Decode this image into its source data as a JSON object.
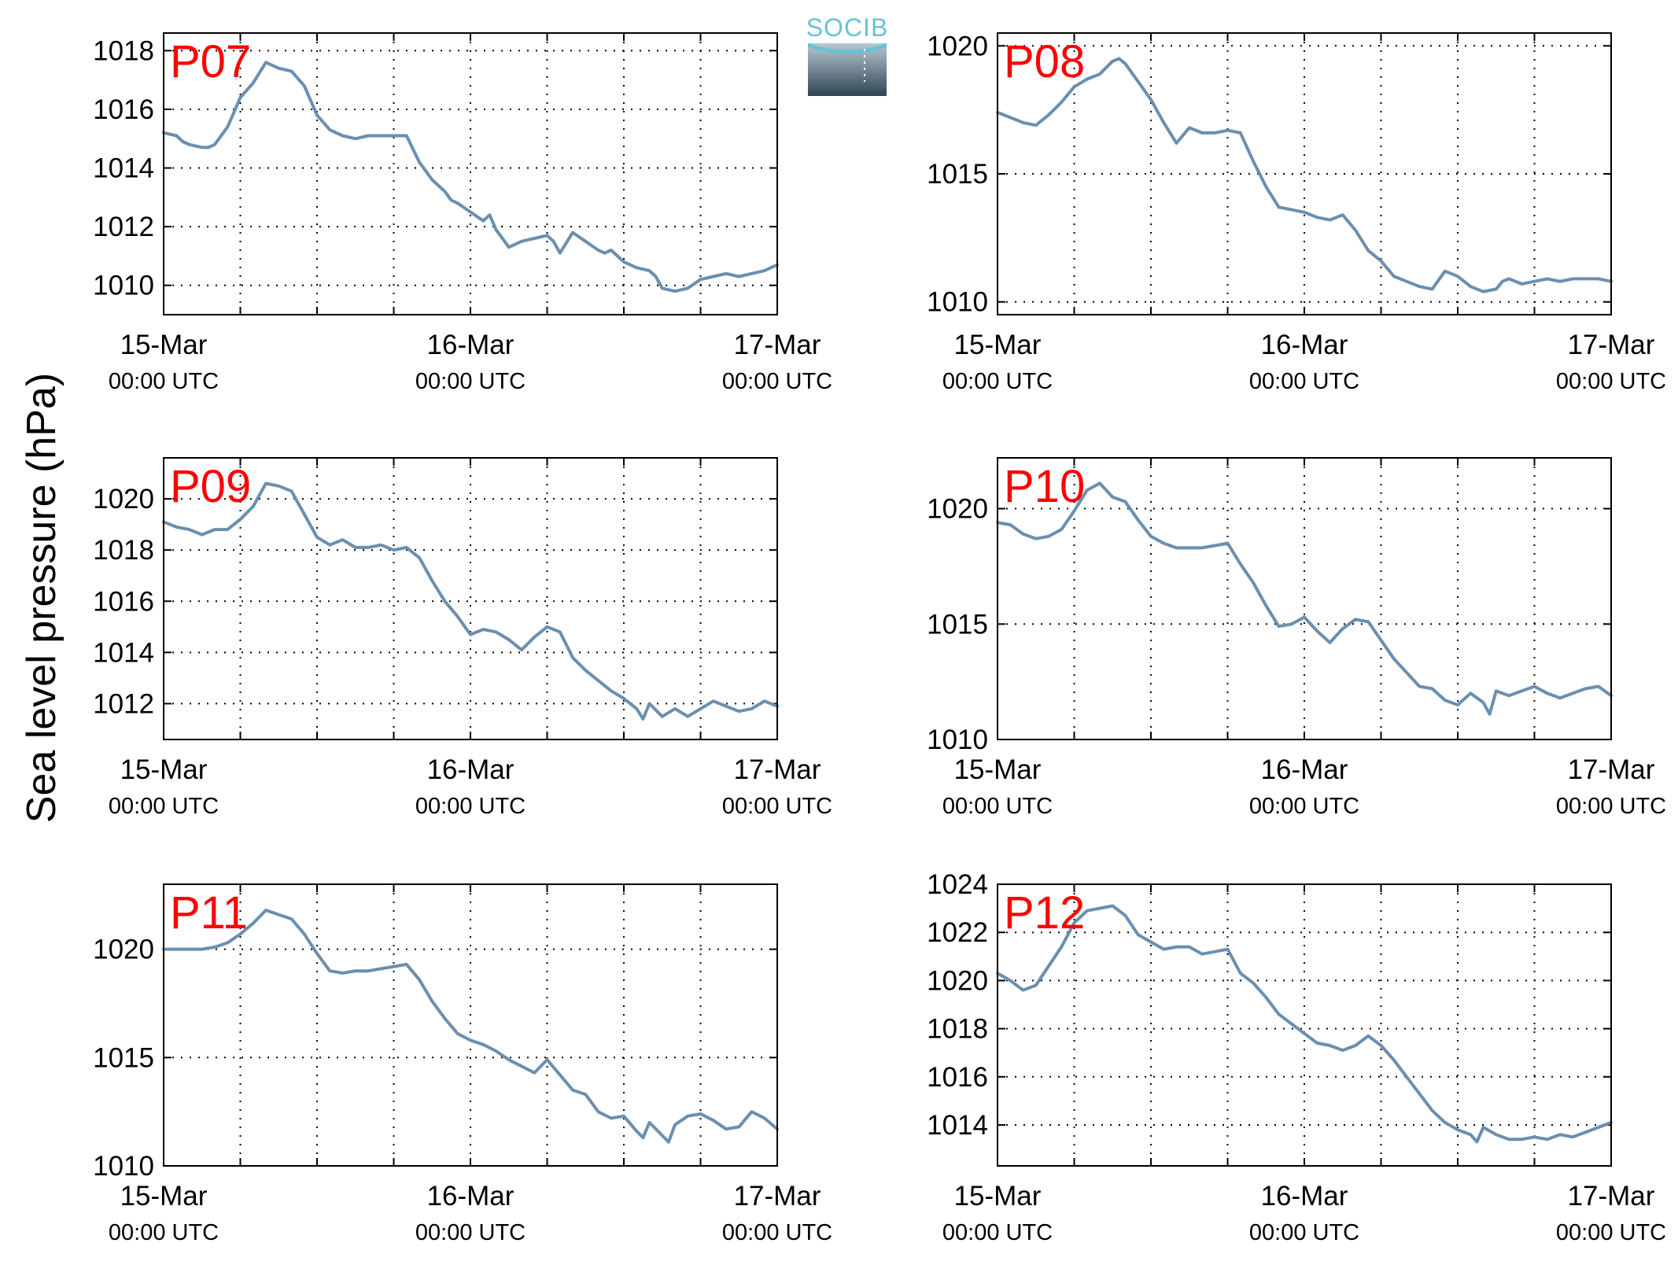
{
  "figure": {
    "ylabel": "Sea level pressure (hPa)",
    "logo_text": "SOCIB",
    "line_color": "#6a8fb0",
    "station_label_color": "#ff0000"
  },
  "chart_data": [
    {
      "type": "line",
      "station": "P07",
      "xlim": [
        0,
        48
      ],
      "ylim": [
        1009,
        1018.6
      ],
      "yticks": [
        1010,
        1012,
        1014,
        1016,
        1018
      ],
      "xticks": [
        {
          "x": 0,
          "date": "15-Mar",
          "time": "00:00 UTC"
        },
        {
          "x": 24,
          "date": "16-Mar",
          "time": "00:00 UTC"
        },
        {
          "x": 48,
          "date": "17-Mar",
          "time": "00:00 UTC"
        }
      ],
      "xgrid": [
        6,
        12,
        18,
        24,
        30,
        36,
        42
      ],
      "x": [
        0,
        1,
        1.5,
        2,
        3,
        3.5,
        4,
        5,
        6,
        7,
        8,
        9,
        10,
        11,
        12,
        13,
        14,
        15,
        16,
        17,
        18,
        19,
        20,
        21,
        22,
        22.5,
        23,
        24,
        25,
        25.5,
        26,
        27,
        28,
        29,
        30,
        30.5,
        31,
        32,
        33,
        34,
        34.5,
        35,
        36,
        37,
        38,
        38.5,
        39,
        40,
        41,
        42,
        43,
        44,
        45,
        46,
        47,
        48
      ],
      "values": [
        1015.2,
        1015.1,
        1014.9,
        1014.8,
        1014.7,
        1014.7,
        1014.8,
        1015.4,
        1016.4,
        1016.9,
        1017.6,
        1017.4,
        1017.3,
        1016.8,
        1015.8,
        1015.3,
        1015.1,
        1015.0,
        1015.1,
        1015.1,
        1015.1,
        1015.1,
        1014.2,
        1013.6,
        1013.2,
        1012.9,
        1012.8,
        1012.5,
        1012.2,
        1012.4,
        1011.9,
        1011.3,
        1011.5,
        1011.6,
        1011.7,
        1011.5,
        1011.1,
        1011.8,
        1011.5,
        1011.2,
        1011.1,
        1011.2,
        1010.8,
        1010.6,
        1010.5,
        1010.3,
        1009.9,
        1009.8,
        1009.9,
        1010.2,
        1010.3,
        1010.4,
        1010.3,
        1010.4,
        1010.5,
        1010.7
      ]
    },
    {
      "type": "line",
      "station": "P08",
      "xlim": [
        0,
        48
      ],
      "ylim": [
        1009.5,
        1020.5
      ],
      "yticks": [
        1010,
        1015,
        1020
      ],
      "xticks": [
        {
          "x": 0,
          "date": "15-Mar",
          "time": "00:00 UTC"
        },
        {
          "x": 24,
          "date": "16-Mar",
          "time": "00:00 UTC"
        },
        {
          "x": 48,
          "date": "17-Mar",
          "time": "00:00 UTC"
        }
      ],
      "xgrid": [
        6,
        12,
        18,
        24,
        30,
        36,
        42
      ],
      "x": [
        0,
        1,
        2,
        3,
        4,
        5,
        6,
        7,
        8,
        9,
        9.5,
        10,
        11,
        12,
        13,
        14,
        15,
        16,
        17,
        18,
        19,
        20,
        21,
        22,
        23,
        24,
        25,
        26,
        27,
        28,
        29,
        30,
        31,
        32,
        33,
        34,
        35,
        36,
        37,
        38,
        39,
        39.5,
        40,
        41,
        42,
        43,
        44,
        45,
        46,
        47,
        48
      ],
      "values": [
        1017.4,
        1017.2,
        1017.0,
        1016.9,
        1017.3,
        1017.8,
        1018.4,
        1018.7,
        1018.9,
        1019.4,
        1019.5,
        1019.3,
        1018.6,
        1017.9,
        1017.0,
        1016.2,
        1016.8,
        1016.6,
        1016.6,
        1016.7,
        1016.6,
        1015.5,
        1014.5,
        1013.7,
        1013.6,
        1013.5,
        1013.3,
        1013.2,
        1013.4,
        1012.8,
        1012.0,
        1011.6,
        1011.0,
        1010.8,
        1010.6,
        1010.5,
        1011.2,
        1011.0,
        1010.6,
        1010.4,
        1010.5,
        1010.8,
        1010.9,
        1010.7,
        1010.8,
        1010.9,
        1010.8,
        1010.9,
        1010.9,
        1010.9,
        1010.8
      ]
    },
    {
      "type": "line",
      "station": "P09",
      "xlim": [
        0,
        48
      ],
      "ylim": [
        1010.6,
        1021.6
      ],
      "yticks": [
        1012,
        1014,
        1016,
        1018,
        1020
      ],
      "xticks": [
        {
          "x": 0,
          "date": "15-Mar",
          "time": "00:00 UTC"
        },
        {
          "x": 24,
          "date": "16-Mar",
          "time": "00:00 UTC"
        },
        {
          "x": 48,
          "date": "17-Mar",
          "time": "00:00 UTC"
        }
      ],
      "xgrid": [
        6,
        12,
        18,
        24,
        30,
        36,
        42
      ],
      "x": [
        0,
        1,
        2,
        3,
        4,
        5,
        6,
        7,
        8,
        9,
        10,
        11,
        12,
        13,
        14,
        15,
        16,
        17,
        18,
        19,
        20,
        21,
        22,
        23,
        24,
        25,
        26,
        27,
        28,
        29,
        30,
        31,
        32,
        33,
        34,
        35,
        36,
        37,
        37.5,
        38,
        39,
        40,
        41,
        42,
        43,
        44,
        45,
        46,
        47,
        48
      ],
      "values": [
        1019.1,
        1018.9,
        1018.8,
        1018.6,
        1018.8,
        1018.8,
        1019.2,
        1019.7,
        1020.6,
        1020.5,
        1020.3,
        1019.4,
        1018.5,
        1018.2,
        1018.4,
        1018.1,
        1018.1,
        1018.2,
        1018.0,
        1018.1,
        1017.7,
        1016.8,
        1016.0,
        1015.4,
        1014.7,
        1014.9,
        1014.8,
        1014.5,
        1014.1,
        1014.6,
        1015.0,
        1014.8,
        1013.8,
        1013.3,
        1012.9,
        1012.5,
        1012.2,
        1011.8,
        1011.4,
        1012.0,
        1011.5,
        1011.8,
        1011.5,
        1011.8,
        1012.1,
        1011.9,
        1011.7,
        1011.8,
        1012.1,
        1011.9
      ]
    },
    {
      "type": "line",
      "station": "P10",
      "xlim": [
        0,
        48
      ],
      "ylim": [
        1010,
        1022.2
      ],
      "yticks": [
        1010,
        1015,
        1020
      ],
      "xticks": [
        {
          "x": 0,
          "date": "15-Mar",
          "time": "00:00 UTC"
        },
        {
          "x": 24,
          "date": "16-Mar",
          "time": "00:00 UTC"
        },
        {
          "x": 48,
          "date": "17-Mar",
          "time": "00:00 UTC"
        }
      ],
      "xgrid": [
        6,
        12,
        18,
        24,
        30,
        36,
        42
      ],
      "x": [
        0,
        1,
        2,
        3,
        4,
        5,
        6,
        7,
        8,
        9,
        10,
        11,
        12,
        13,
        14,
        15,
        16,
        17,
        18,
        19,
        20,
        21,
        22,
        23,
        24,
        25,
        26,
        27,
        28,
        29,
        30,
        31,
        32,
        33,
        34,
        35,
        36,
        37,
        38,
        38.5,
        39,
        40,
        41,
        42,
        43,
        44,
        45,
        46,
        47,
        48
      ],
      "values": [
        1019.4,
        1019.3,
        1018.9,
        1018.7,
        1018.8,
        1019.1,
        1019.9,
        1020.8,
        1021.1,
        1020.5,
        1020.3,
        1019.5,
        1018.8,
        1018.5,
        1018.3,
        1018.3,
        1018.3,
        1018.4,
        1018.5,
        1017.6,
        1016.8,
        1015.8,
        1014.9,
        1015.0,
        1015.3,
        1014.7,
        1014.2,
        1014.8,
        1015.2,
        1015.1,
        1014.3,
        1013.5,
        1012.9,
        1012.3,
        1012.2,
        1011.7,
        1011.5,
        1012.0,
        1011.6,
        1011.1,
        1012.1,
        1011.9,
        1012.1,
        1012.3,
        1012.0,
        1011.8,
        1012.0,
        1012.2,
        1012.3,
        1011.9
      ]
    },
    {
      "type": "line",
      "station": "P11",
      "xlim": [
        0,
        48
      ],
      "ylim": [
        1010,
        1023
      ],
      "yticks": [
        1010,
        1015,
        1020
      ],
      "xticks": [
        {
          "x": 0,
          "date": "15-Mar",
          "time": "00:00 UTC"
        },
        {
          "x": 24,
          "date": "16-Mar",
          "time": "00:00 UTC"
        },
        {
          "x": 48,
          "date": "17-Mar",
          "time": "00:00 UTC"
        }
      ],
      "xgrid": [
        6,
        12,
        18,
        24,
        30,
        36,
        42
      ],
      "x": [
        0,
        1,
        2,
        3,
        4,
        5,
        6,
        7,
        8,
        9,
        10,
        11,
        12,
        13,
        14,
        15,
        16,
        17,
        18,
        19,
        20,
        21,
        22,
        23,
        24,
        25,
        26,
        27,
        28,
        29,
        30,
        31,
        32,
        33,
        34,
        35,
        36,
        37,
        37.5,
        38,
        39,
        39.5,
        40,
        41,
        42,
        43,
        44,
        45,
        46,
        47,
        48
      ],
      "values": [
        1020.0,
        1020.0,
        1020.0,
        1020.0,
        1020.1,
        1020.3,
        1020.7,
        1021.2,
        1021.8,
        1021.6,
        1021.4,
        1020.7,
        1019.8,
        1019.0,
        1018.9,
        1019.0,
        1019.0,
        1019.1,
        1019.2,
        1019.3,
        1018.6,
        1017.6,
        1016.8,
        1016.1,
        1015.8,
        1015.6,
        1015.3,
        1014.9,
        1014.6,
        1014.3,
        1014.9,
        1014.2,
        1013.5,
        1013.3,
        1012.5,
        1012.2,
        1012.3,
        1011.6,
        1011.3,
        1012.0,
        1011.4,
        1011.1,
        1011.9,
        1012.3,
        1012.4,
        1012.1,
        1011.7,
        1011.8,
        1012.5,
        1012.2,
        1011.7
      ]
    },
    {
      "type": "line",
      "station": "P12",
      "xlim": [
        0,
        48
      ],
      "ylim": [
        1012.3,
        1024
      ],
      "yticks": [
        1014,
        1016,
        1018,
        1020,
        1022,
        1024
      ],
      "xticks": [
        {
          "x": 0,
          "date": "15-Mar",
          "time": "00:00 UTC"
        },
        {
          "x": 24,
          "date": "16-Mar",
          "time": "00:00 UTC"
        },
        {
          "x": 48,
          "date": "17-Mar",
          "time": "00:00 UTC"
        }
      ],
      "xgrid": [
        6,
        12,
        18,
        24,
        30,
        36,
        42
      ],
      "x": [
        0,
        1,
        2,
        3,
        4,
        5,
        6,
        7,
        8,
        9,
        10,
        11,
        12,
        13,
        14,
        15,
        16,
        17,
        18,
        19,
        20,
        21,
        22,
        23,
        24,
        25,
        26,
        27,
        28,
        29,
        30,
        31,
        32,
        33,
        34,
        35,
        36,
        37,
        37.5,
        38,
        39,
        40,
        41,
        42,
        43,
        44,
        45,
        46,
        47,
        48
      ],
      "values": [
        1020.3,
        1020.0,
        1019.6,
        1019.8,
        1020.6,
        1021.4,
        1022.4,
        1022.9,
        1023.0,
        1023.1,
        1022.7,
        1021.9,
        1021.6,
        1021.3,
        1021.4,
        1021.4,
        1021.1,
        1021.2,
        1021.3,
        1020.3,
        1019.9,
        1019.3,
        1018.6,
        1018.2,
        1017.8,
        1017.4,
        1017.3,
        1017.1,
        1017.3,
        1017.7,
        1017.3,
        1016.7,
        1016.0,
        1015.3,
        1014.6,
        1014.1,
        1013.8,
        1013.6,
        1013.3,
        1013.9,
        1013.6,
        1013.4,
        1013.4,
        1013.5,
        1013.4,
        1013.6,
        1013.5,
        1013.7,
        1013.9,
        1014.1
      ]
    }
  ]
}
